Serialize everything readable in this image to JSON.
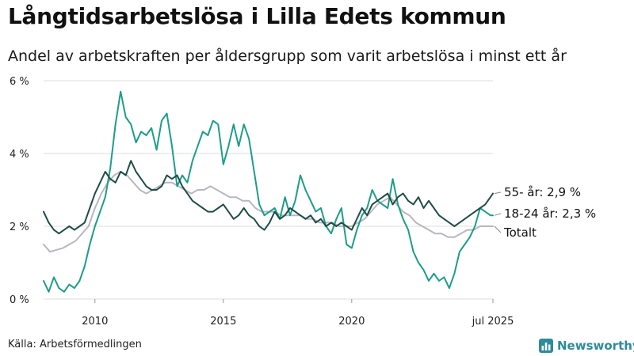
{
  "title": "Långtidsarbetslösa i Lilla Edets kommun",
  "subtitle": "Andel av arbetskraften per åldersgrupp som varit arbetslösa i minst ett år",
  "source": "Källa: Arbetsförmedlingen",
  "brand": {
    "name": "Newsworthy",
    "icon": "chart-bars-icon",
    "color": "#2e8b9a"
  },
  "chart_data": {
    "type": "line",
    "ylim": [
      0,
      6
    ],
    "xlim": [
      2008.0,
      2025.5
    ],
    "yticks": [
      0,
      2,
      4,
      6
    ],
    "ytick_labels": [
      "0 %",
      "2 %",
      "4 %",
      "6 %"
    ],
    "xticks": [
      2010,
      2015,
      2020,
      2025.5
    ],
    "xtick_labels": [
      "2010",
      "2015",
      "2020",
      "jul 2025"
    ],
    "grid": true,
    "legend": "direct-labels-right",
    "series": [
      {
        "name": "Totalt",
        "end_label": "Totalt",
        "color": "#b8b6c2",
        "x": [
          2008.0,
          2008.25,
          2008.5,
          2008.75,
          2009.0,
          2009.25,
          2009.5,
          2009.75,
          2010.0,
          2010.25,
          2010.5,
          2010.75,
          2011.0,
          2011.25,
          2011.5,
          2011.75,
          2012.0,
          2012.25,
          2012.5,
          2012.75,
          2013.0,
          2013.25,
          2013.5,
          2013.75,
          2014.0,
          2014.25,
          2014.5,
          2014.75,
          2015.0,
          2015.25,
          2015.5,
          2015.75,
          2016.0,
          2016.25,
          2016.5,
          2016.75,
          2017.0,
          2017.25,
          2017.5,
          2017.75,
          2018.0,
          2018.25,
          2018.5,
          2018.75,
          2019.0,
          2019.25,
          2019.5,
          2019.75,
          2020.0,
          2020.25,
          2020.5,
          2020.75,
          2021.0,
          2021.25,
          2021.5,
          2021.75,
          2022.0,
          2022.25,
          2022.5,
          2022.75,
          2023.0,
          2023.25,
          2023.5,
          2023.75,
          2024.0,
          2024.25,
          2024.5,
          2024.75,
          2025.0,
          2025.25,
          2025.5
        ],
        "values": [
          1.5,
          1.3,
          1.35,
          1.4,
          1.5,
          1.6,
          1.8,
          2.0,
          2.5,
          2.9,
          3.2,
          3.4,
          3.5,
          3.4,
          3.2,
          3.0,
          2.9,
          3.0,
          3.1,
          3.2,
          3.2,
          3.1,
          3.0,
          2.9,
          3.0,
          3.0,
          3.1,
          3.0,
          2.9,
          2.8,
          2.8,
          2.7,
          2.7,
          2.5,
          2.4,
          2.4,
          2.4,
          2.3,
          2.3,
          2.3,
          2.3,
          2.2,
          2.2,
          2.1,
          2.1,
          2.1,
          2.0,
          2.0,
          2.0,
          2.1,
          2.2,
          2.4,
          2.6,
          2.7,
          2.8,
          2.6,
          2.4,
          2.3,
          2.1,
          2.0,
          1.9,
          1.8,
          1.8,
          1.7,
          1.7,
          1.8,
          1.9,
          1.9,
          2.0,
          2.0,
          2.0
        ]
      },
      {
        "name": "18-24 år",
        "end_label": "18-24 år: 2,3 %",
        "color": "#1e9c8a",
        "x": [
          2008.0,
          2008.2,
          2008.4,
          2008.6,
          2008.8,
          2009.0,
          2009.2,
          2009.4,
          2009.6,
          2009.8,
          2010.0,
          2010.2,
          2010.4,
          2010.6,
          2010.8,
          2011.0,
          2011.2,
          2011.4,
          2011.6,
          2011.8,
          2012.0,
          2012.2,
          2012.4,
          2012.6,
          2012.8,
          2013.0,
          2013.2,
          2013.4,
          2013.6,
          2013.8,
          2014.0,
          2014.2,
          2014.4,
          2014.6,
          2014.8,
          2015.0,
          2015.2,
          2015.4,
          2015.6,
          2015.8,
          2016.0,
          2016.2,
          2016.4,
          2016.6,
          2016.8,
          2017.0,
          2017.2,
          2017.4,
          2017.6,
          2017.8,
          2018.0,
          2018.2,
          2018.4,
          2018.6,
          2018.8,
          2019.0,
          2019.2,
          2019.4,
          2019.6,
          2019.8,
          2020.0,
          2020.2,
          2020.4,
          2020.6,
          2020.8,
          2021.0,
          2021.2,
          2021.4,
          2021.6,
          2021.8,
          2022.0,
          2022.2,
          2022.4,
          2022.6,
          2022.8,
          2023.0,
          2023.2,
          2023.4,
          2023.6,
          2023.8,
          2024.0,
          2024.2,
          2024.4,
          2024.6,
          2024.8,
          2025.0,
          2025.2,
          2025.4,
          2025.5
        ],
        "values": [
          0.5,
          0.2,
          0.6,
          0.3,
          0.2,
          0.4,
          0.3,
          0.5,
          0.9,
          1.5,
          2.0,
          2.4,
          2.8,
          3.6,
          4.8,
          5.7,
          5.0,
          4.8,
          4.3,
          4.6,
          4.5,
          4.7,
          4.1,
          4.9,
          5.1,
          4.2,
          3.1,
          3.4,
          3.2,
          3.8,
          4.2,
          4.6,
          4.5,
          4.9,
          4.8,
          3.7,
          4.2,
          4.8,
          4.2,
          4.8,
          4.4,
          3.5,
          2.6,
          2.3,
          2.4,
          2.5,
          2.2,
          2.8,
          2.3,
          2.7,
          3.4,
          3.0,
          2.7,
          2.4,
          2.5,
          2.0,
          1.8,
          2.2,
          2.5,
          1.5,
          1.4,
          1.9,
          2.3,
          2.5,
          3.0,
          2.7,
          2.6,
          2.5,
          3.3,
          2.6,
          2.2,
          1.9,
          1.3,
          1.0,
          0.8,
          0.5,
          0.7,
          0.5,
          0.6,
          0.3,
          0.7,
          1.3,
          1.5,
          1.7,
          2.0,
          2.5,
          2.4,
          2.3,
          2.3
        ]
      },
      {
        "name": "55- år",
        "end_label": "55- år: 2,9 %",
        "color": "#1f4d45",
        "x": [
          2008.0,
          2008.2,
          2008.4,
          2008.6,
          2008.8,
          2009.0,
          2009.2,
          2009.4,
          2009.6,
          2009.8,
          2010.0,
          2010.2,
          2010.4,
          2010.6,
          2010.8,
          2011.0,
          2011.2,
          2011.4,
          2011.6,
          2011.8,
          2012.0,
          2012.2,
          2012.4,
          2012.6,
          2012.8,
          2013.0,
          2013.2,
          2013.4,
          2013.6,
          2013.8,
          2014.0,
          2014.2,
          2014.4,
          2014.6,
          2014.8,
          2015.0,
          2015.2,
          2015.4,
          2015.6,
          2015.8,
          2016.0,
          2016.2,
          2016.4,
          2016.6,
          2016.8,
          2017.0,
          2017.2,
          2017.4,
          2017.6,
          2017.8,
          2018.0,
          2018.2,
          2018.4,
          2018.6,
          2018.8,
          2019.0,
          2019.2,
          2019.4,
          2019.6,
          2019.8,
          2020.0,
          2020.2,
          2020.4,
          2020.6,
          2020.8,
          2021.0,
          2021.2,
          2021.4,
          2021.6,
          2021.8,
          2022.0,
          2022.2,
          2022.4,
          2022.6,
          2022.8,
          2023.0,
          2023.2,
          2023.4,
          2023.6,
          2023.8,
          2024.0,
          2024.2,
          2024.4,
          2024.6,
          2024.8,
          2025.0,
          2025.2,
          2025.4,
          2025.5
        ],
        "values": [
          2.4,
          2.1,
          1.9,
          1.8,
          1.9,
          2.0,
          1.9,
          2.0,
          2.1,
          2.5,
          2.9,
          3.2,
          3.5,
          3.3,
          3.2,
          3.5,
          3.4,
          3.8,
          3.5,
          3.3,
          3.1,
          3.0,
          3.0,
          3.1,
          3.4,
          3.3,
          3.4,
          3.1,
          2.9,
          2.7,
          2.6,
          2.5,
          2.4,
          2.4,
          2.5,
          2.6,
          2.4,
          2.2,
          2.3,
          2.5,
          2.3,
          2.2,
          2.0,
          1.9,
          2.1,
          2.4,
          2.2,
          2.3,
          2.5,
          2.4,
          2.3,
          2.2,
          2.3,
          2.1,
          2.2,
          2.0,
          2.1,
          2.0,
          2.1,
          2.0,
          1.9,
          2.2,
          2.5,
          2.3,
          2.6,
          2.7,
          2.8,
          2.9,
          2.6,
          2.8,
          2.9,
          2.7,
          2.6,
          2.8,
          2.5,
          2.7,
          2.5,
          2.3,
          2.2,
          2.1,
          2.0,
          2.1,
          2.2,
          2.3,
          2.4,
          2.5,
          2.6,
          2.8,
          2.9
        ]
      }
    ]
  }
}
